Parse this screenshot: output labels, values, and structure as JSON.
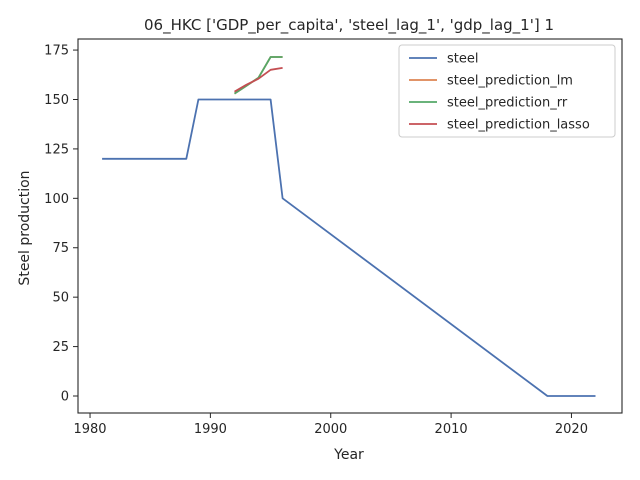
{
  "chart_data": {
    "type": "line",
    "title": "06_HKC ['GDP_per_capita', 'steel_lag_1', 'gdp_lag_1'] 1",
    "xlabel": "Year",
    "ylabel": "Steel production",
    "xlim": [
      1979,
      2024.2
    ],
    "ylim": [
      -8.6,
      180.6
    ],
    "xticks": [
      1980,
      1990,
      2000,
      2010,
      2020
    ],
    "yticks": [
      0,
      25,
      50,
      75,
      100,
      125,
      150,
      175
    ],
    "grid": false,
    "legend_position": "top-right",
    "series": [
      {
        "name": "steel",
        "color": "#4c72b0",
        "points": [
          [
            1981,
            120
          ],
          [
            1988,
            120
          ],
          [
            1989,
            150
          ],
          [
            1995,
            150
          ],
          [
            1996,
            100
          ],
          [
            2018,
            0
          ],
          [
            2022,
            0
          ]
        ]
      },
      {
        "name": "steel_prediction_lm",
        "color": "#dd8452",
        "points": [
          [
            1992,
            153
          ],
          [
            1993,
            157
          ],
          [
            1994,
            161
          ],
          [
            1995,
            171.5
          ],
          [
            1996,
            171.5
          ]
        ]
      },
      {
        "name": "steel_prediction_rr",
        "color": "#55a868",
        "points": [
          [
            1992,
            153
          ],
          [
            1993,
            157
          ],
          [
            1994,
            161
          ],
          [
            1995,
            171.5
          ],
          [
            1996,
            171.5
          ]
        ]
      },
      {
        "name": "steel_prediction_lasso",
        "color": "#c44e52",
        "points": [
          [
            1992,
            154
          ],
          [
            1993,
            157.5
          ],
          [
            1994,
            160.5
          ],
          [
            1995,
            165
          ],
          [
            1996,
            166
          ]
        ]
      }
    ]
  }
}
